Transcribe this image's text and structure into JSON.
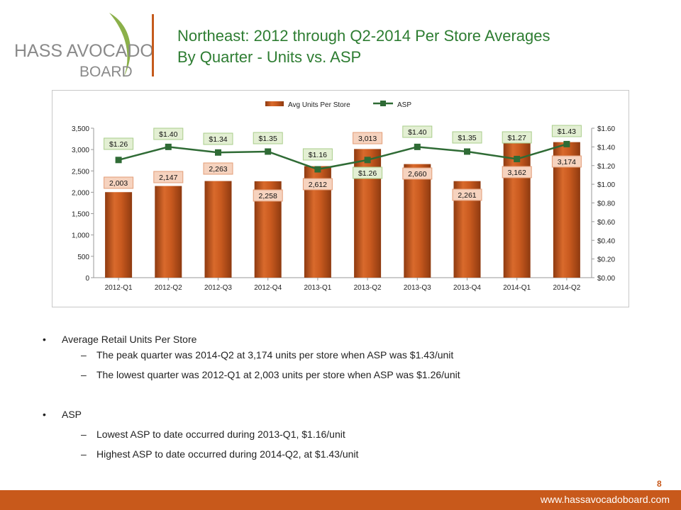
{
  "logo": {
    "text_main": "HASS AVOCADO",
    "text_sub": "BOARD",
    "brand_color": "#8a8a8a",
    "leaf_color": "#8bb04a"
  },
  "title": {
    "line1": "Northeast: 2012 through Q2-2014 Per Store Averages",
    "line2": "By Quarter - Units vs. ASP",
    "color": "#2e7d32"
  },
  "chart_data": {
    "type": "bar",
    "categories": [
      "2012-Q1",
      "2012-Q2",
      "2012-Q3",
      "2012-Q4",
      "2013-Q1",
      "2013-Q2",
      "2013-Q3",
      "2013-Q4",
      "2014-Q1",
      "2014-Q2"
    ],
    "series": [
      {
        "name": "Avg Units Per Store",
        "type": "bar",
        "axis": "left",
        "color": "#c0561f",
        "values": [
          2003,
          2147,
          2263,
          2258,
          2612,
          3013,
          2660,
          2261,
          3162,
          3174
        ],
        "labels": [
          "2,003",
          "2,147",
          "2,263",
          "2,258",
          "2,612",
          "3,013",
          "2,660",
          "2,261",
          "3,162",
          "3,174"
        ]
      },
      {
        "name": "ASP",
        "type": "line",
        "axis": "right",
        "color": "#2f6b35",
        "values": [
          1.26,
          1.4,
          1.34,
          1.35,
          1.16,
          1.26,
          1.4,
          1.35,
          1.27,
          1.43
        ],
        "labels": [
          "$1.26",
          "$1.40",
          "$1.34",
          "$1.35",
          "$1.16",
          "$1.26",
          "$1.40",
          "$1.35",
          "$1.27",
          "$1.43"
        ]
      }
    ],
    "ylim_left": [
      0,
      3500
    ],
    "ylim_right": [
      0,
      1.6
    ],
    "left_ticks": [
      "0",
      "500",
      "1,000",
      "1,500",
      "2,000",
      "2,500",
      "3,000",
      "3,500"
    ],
    "right_ticks": [
      "$0.00",
      "$0.20",
      "$0.40",
      "$0.60",
      "$0.80",
      "$1.00",
      "$1.20",
      "$1.40",
      "$1.60"
    ],
    "legend_position": "top-center",
    "grid": false
  },
  "bullets": [
    {
      "text": "Average Retail Units Per Store",
      "subs": [
        "The peak quarter was 2014-Q2 at 3,174 units per store when ASP was $1.43/unit",
        "The lowest quarter was 2012-Q1 at 2,003 units per store when ASP was $1.26/unit"
      ]
    },
    {
      "text": "ASP",
      "subs": [
        "Lowest ASP to date occurred during 2013-Q1, $1.16/unit",
        "Highest ASP to date occurred during 2014-Q2, at $1.43/unit"
      ]
    }
  ],
  "bullet_symbol": "•",
  "sub_symbol": "–",
  "page_number": "8",
  "footer": {
    "url": "www.hassavocadoboard.com",
    "color": "#c8591b"
  }
}
